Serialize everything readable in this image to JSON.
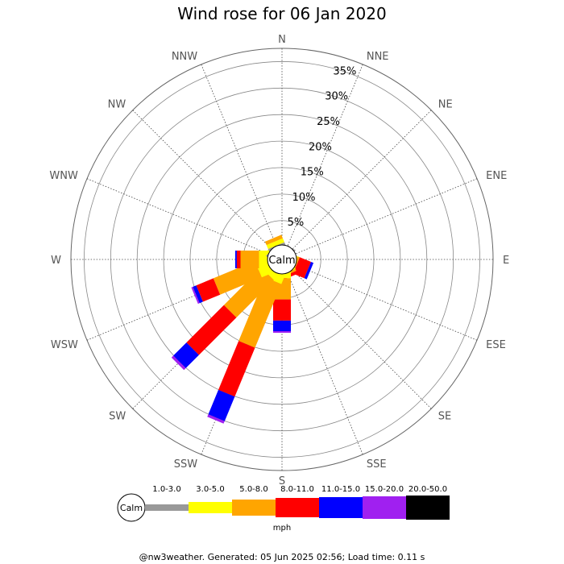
{
  "chart_data": {
    "type": "windrose",
    "title": "Wind rose for 06 Jan 2020",
    "calm_label": "Calm",
    "directions": [
      "N",
      "NNE",
      "NE",
      "ENE",
      "E",
      "ESE",
      "SE",
      "SSE",
      "S",
      "SSW",
      "SW",
      "WSW",
      "W",
      "WNW",
      "NW",
      "NNW"
    ],
    "radial_ticks": [
      "5%",
      "10%",
      "15%",
      "20%",
      "25%",
      "30%",
      "35%"
    ],
    "radial_tick_values": [
      5,
      10,
      15,
      20,
      25,
      30,
      35
    ],
    "rmax_percent": 37.5,
    "calm_radius_percent": 2.2,
    "speed_bins": [
      "1.0-3.0",
      "3.0-5.0",
      "5.0-8.0",
      "8.0-11.0",
      "11.0-15.0",
      "15.0-20.0",
      "20.0-50.0"
    ],
    "bin_colors": [
      "#999999",
      "#ffff00",
      "#ffa500",
      "#ff0000",
      "#0000ff",
      "#a020f0",
      "#000000"
    ],
    "unit": "mph",
    "series": [
      {
        "name": "1.0-3.0",
        "values": [
          0,
          0.3,
          0,
          0,
          0,
          0,
          0,
          0,
          0,
          0,
          0,
          0,
          0,
          0,
          0.3,
          0.5
        ]
      },
      {
        "name": "3.0-5.0",
        "values": [
          0,
          0,
          0,
          0,
          0,
          0.2,
          0,
          0.3,
          1.2,
          2.0,
          1.5,
          2.5,
          2.0,
          0.5,
          0.5,
          0.8
        ]
      },
      {
        "name": "5.0-8.0",
        "values": [
          0,
          0,
          0,
          0,
          0,
          0.4,
          0,
          0.4,
          4.0,
          13.0,
          10.0,
          8.5,
          3.5,
          0,
          0,
          0.7
        ]
      },
      {
        "name": "8.0-11.0",
        "values": [
          0,
          0,
          0,
          0,
          0,
          2.3,
          0,
          0.6,
          4.0,
          10.0,
          10.0,
          3.5,
          0.7,
          0,
          0,
          0
        ]
      },
      {
        "name": "11.0-15.0",
        "values": [
          0,
          0,
          0,
          0,
          0,
          0.5,
          0,
          0,
          2.0,
          5.0,
          3.5,
          0.7,
          0.3,
          0,
          0,
          0
        ]
      },
      {
        "name": "15.0-20.0",
        "values": [
          0,
          0,
          0,
          0,
          0,
          0,
          0,
          0,
          0.3,
          0.5,
          0.5,
          0.3,
          0,
          0,
          0,
          0
        ]
      },
      {
        "name": "20.0-50.0",
        "values": [
          0,
          0,
          0,
          0,
          0,
          0,
          0,
          0,
          0,
          0,
          0,
          0,
          0,
          0,
          0,
          0
        ]
      }
    ]
  },
  "footer": "@nw3weather. Generated: 05 Jun 2025 02:56; Load time: 0.11 s"
}
